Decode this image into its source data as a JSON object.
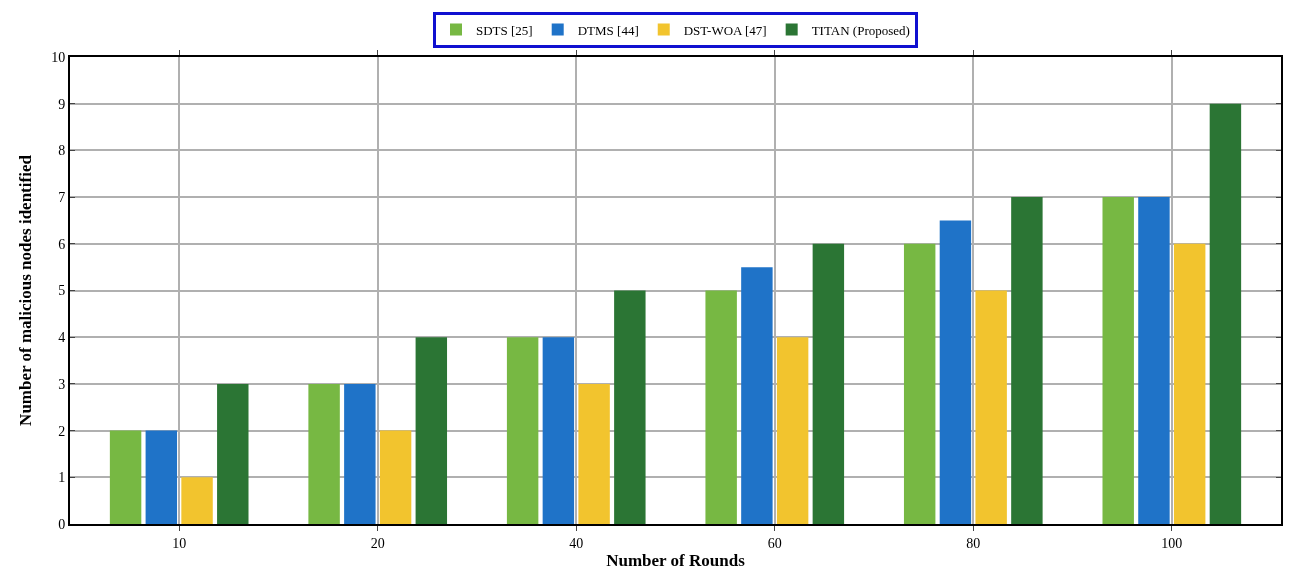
{
  "chart_data": {
    "type": "bar",
    "xlabel": "Number of Rounds",
    "ylabel": "Number of malicious nodes identified",
    "categories": [
      "10",
      "20",
      "40",
      "60",
      "80",
      "100"
    ],
    "series": [
      {
        "name": "SDTS [25]",
        "color": "#77b843",
        "values": [
          2,
          3,
          4,
          5,
          6,
          7
        ]
      },
      {
        "name": "DTMS [44]",
        "color": "#1f73c8",
        "values": [
          2,
          3,
          4,
          5.5,
          6.5,
          7
        ]
      },
      {
        "name": "DST-WOA [47]",
        "color": "#f2c42e",
        "values": [
          1,
          2,
          3,
          4,
          5,
          6
        ]
      },
      {
        "name": "TITAN (Proposed)",
        "color": "#2b7534",
        "values": [
          3,
          4,
          5,
          6,
          7,
          9
        ]
      }
    ],
    "ylim": [
      0,
      10
    ],
    "yticks": [
      0,
      1,
      2,
      3,
      4,
      5,
      6,
      7,
      8,
      9,
      10
    ],
    "grid": true,
    "legend": "top"
  }
}
